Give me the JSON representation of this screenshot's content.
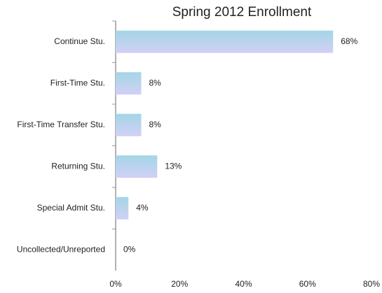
{
  "chart_data": {
    "type": "bar",
    "orientation": "horizontal",
    "title": "Spring 2012 Enrollment",
    "categories": [
      "Continue Stu.",
      "First-Time Stu.",
      "First-Time Transfer Stu.",
      "Returning Stu.",
      "Special Admit Stu.",
      "Uncollected/Unreported"
    ],
    "values": [
      68,
      8,
      8,
      13,
      4,
      0
    ],
    "value_labels": [
      "68%",
      "8%",
      "8%",
      "13%",
      "4%",
      "0%"
    ],
    "gradient": [
      "#a3d6e6",
      "#d2d0f5"
    ],
    "xlim": [
      0,
      80
    ],
    "xticks": [
      {
        "value": 0,
        "label": "0%"
      },
      {
        "value": 20,
        "label": "20%"
      },
      {
        "value": 40,
        "label": "40%"
      },
      {
        "value": 60,
        "label": "60%"
      },
      {
        "value": 80,
        "label": "80%"
      }
    ],
    "grid": false
  }
}
